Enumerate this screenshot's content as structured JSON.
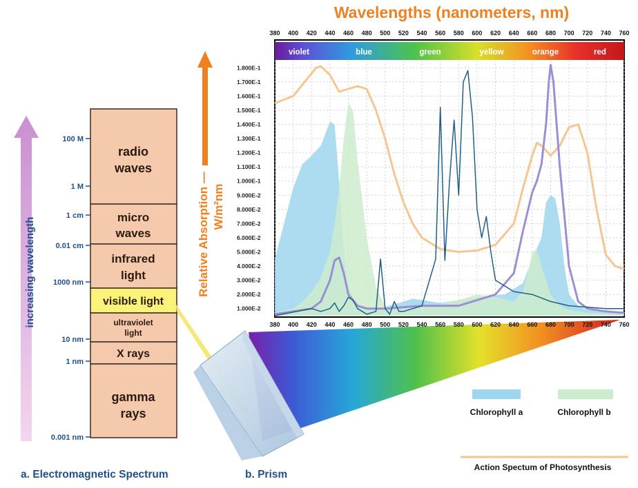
{
  "chart_title": "Wavelengths (nanometers, nm)",
  "y_axis_label_line1": "Relative Absorption —",
  "y_axis_label_line2": "W/m²nm",
  "spectrum": {
    "axis_label": "increasing wavelength",
    "caption": "a. Electromagnetic Spectrum",
    "bands": [
      {
        "line1": "radio",
        "line2": "waves"
      },
      {
        "line1": "micro",
        "line2": "waves"
      },
      {
        "line1": "infrared",
        "line2": "light"
      },
      {
        "line1": "visible light",
        "line2": ""
      },
      {
        "line1": "ultraviolet",
        "line2": "light"
      },
      {
        "line1": "X rays",
        "line2": ""
      },
      {
        "line1": "gamma",
        "line2": "rays"
      }
    ],
    "ticks": [
      "100 M",
      "1 M",
      "1 cm",
      "0.01 cm",
      "1000 nm",
      "10 nm",
      "1 nm",
      "0.001 nm"
    ]
  },
  "prism_caption": "b. Prism",
  "color_names": [
    "violet",
    "blue",
    "green",
    "yellow",
    "orange",
    "red"
  ],
  "legend": {
    "chl_a": "Chlorophyll a",
    "chl_b": "Chlorophyll b",
    "action": "Action Spectum of Photosynthesis"
  },
  "colors": {
    "chl_a": "#9fd6ef",
    "chl_b": "#cdeccd",
    "action": "#f7c58f",
    "purple_line": "#9b8fd4",
    "dark_line": "#1f5f86",
    "title": "#f07f1e"
  },
  "chart_data": {
    "type": "area",
    "x_ticks": [
      "380",
      "400",
      "420",
      "440",
      "460",
      "480",
      "500",
      "520",
      "540",
      "560",
      "580",
      "600",
      "620",
      "640",
      "660",
      "680",
      "700",
      "720",
      "740",
      "760"
    ],
    "y_ticks": [
      "1.000E-2",
      "2.000E-2",
      "3.000E-2",
      "4.000E-2",
      "5.000E-2",
      "6.000E-2",
      "7.000E-2",
      "8.000E-2",
      "9.000E-2",
      "1.000E-1",
      "1.100E-1",
      "1.200E-1",
      "1.300E-1",
      "1.400E-1",
      "1.500E-1",
      "1.600E-1",
      "1.700E-1",
      "1.800E-1"
    ],
    "xlim": [
      380,
      760
    ],
    "ylim": [
      0.005,
      0.185
    ],
    "grid": true,
    "series": [
      {
        "name": "Chlorophyll a",
        "x": [
          380,
          400,
          410,
          420,
          430,
          440,
          445,
          450,
          455,
          460,
          470,
          490,
          510,
          530,
          560,
          600,
          630,
          650,
          660,
          670,
          675,
          680,
          685,
          690,
          695,
          700,
          710,
          720,
          740,
          760
        ],
        "y": [
          0.045,
          0.095,
          0.112,
          0.118,
          0.125,
          0.142,
          0.14,
          0.1,
          0.05,
          0.025,
          0.012,
          0.01,
          0.013,
          0.017,
          0.014,
          0.018,
          0.02,
          0.028,
          0.045,
          0.06,
          0.085,
          0.09,
          0.088,
          0.07,
          0.04,
          0.02,
          0.012,
          0.009,
          0.008,
          0.007
        ]
      },
      {
        "name": "Chlorophyll b",
        "x": [
          380,
          400,
          410,
          420,
          430,
          440,
          445,
          450,
          455,
          460,
          465,
          470,
          480,
          490,
          500,
          520,
          550,
          580,
          600,
          620,
          640,
          650,
          655,
          660,
          665,
          670,
          680,
          690,
          700,
          720,
          760
        ],
        "y": [
          0.007,
          0.01,
          0.015,
          0.022,
          0.032,
          0.05,
          0.07,
          0.095,
          0.13,
          0.155,
          0.15,
          0.115,
          0.06,
          0.025,
          0.012,
          0.01,
          0.012,
          0.016,
          0.02,
          0.018,
          0.015,
          0.022,
          0.035,
          0.05,
          0.052,
          0.04,
          0.02,
          0.012,
          0.009,
          0.007,
          0.006
        ]
      },
      {
        "name": "Action Spectum of Photosynthesis",
        "x": [
          380,
          400,
          415,
          425,
          430,
          440,
          450,
          460,
          470,
          480,
          490,
          500,
          510,
          520,
          530,
          540,
          560,
          580,
          600,
          620,
          640,
          650,
          660,
          665,
          670,
          680,
          690,
          700,
          710,
          720,
          730,
          740,
          750,
          760
        ],
        "y": [
          0.155,
          0.16,
          0.172,
          0.18,
          0.181,
          0.175,
          0.163,
          0.165,
          0.167,
          0.165,
          0.15,
          0.13,
          0.105,
          0.085,
          0.07,
          0.06,
          0.052,
          0.05,
          0.051,
          0.055,
          0.07,
          0.095,
          0.118,
          0.127,
          0.125,
          0.118,
          0.125,
          0.138,
          0.14,
          0.12,
          0.08,
          0.048,
          0.04,
          0.038
        ]
      },
      {
        "x": [
          380,
          400,
          420,
          430,
          440,
          445,
          450,
          455,
          460,
          470,
          480,
          500,
          540,
          580,
          620,
          640,
          650,
          660,
          665,
          670,
          675,
          678,
          680,
          683,
          690,
          700,
          710,
          720,
          740,
          760
        ],
        "y": [
          0.006,
          0.008,
          0.01,
          0.015,
          0.03,
          0.044,
          0.046,
          0.035,
          0.02,
          0.012,
          0.01,
          0.01,
          0.012,
          0.012,
          0.02,
          0.035,
          0.065,
          0.092,
          0.1,
          0.112,
          0.14,
          0.17,
          0.182,
          0.17,
          0.11,
          0.04,
          0.015,
          0.01,
          0.008,
          0.007
        ]
      },
      {
        "x": [
          380,
          420,
          430,
          440,
          445,
          450,
          455,
          460,
          465,
          470,
          480,
          490,
          495,
          500,
          505,
          510,
          515,
          520,
          540,
          555,
          560,
          565,
          570,
          575,
          580,
          585,
          590,
          595,
          600,
          605,
          610,
          615,
          620,
          640,
          660,
          680,
          700,
          740,
          760
        ],
        "y": [
          0.005,
          0.01,
          0.008,
          0.01,
          0.014,
          0.008,
          0.012,
          0.018,
          0.016,
          0.01,
          0.006,
          0.008,
          0.045,
          0.01,
          0.006,
          0.015,
          0.008,
          0.008,
          0.012,
          0.045,
          0.152,
          0.044,
          0.1,
          0.143,
          0.09,
          0.17,
          0.178,
          0.145,
          0.08,
          0.06,
          0.075,
          0.05,
          0.03,
          0.022,
          0.02,
          0.015,
          0.012,
          0.01,
          0.01
        ]
      }
    ]
  }
}
